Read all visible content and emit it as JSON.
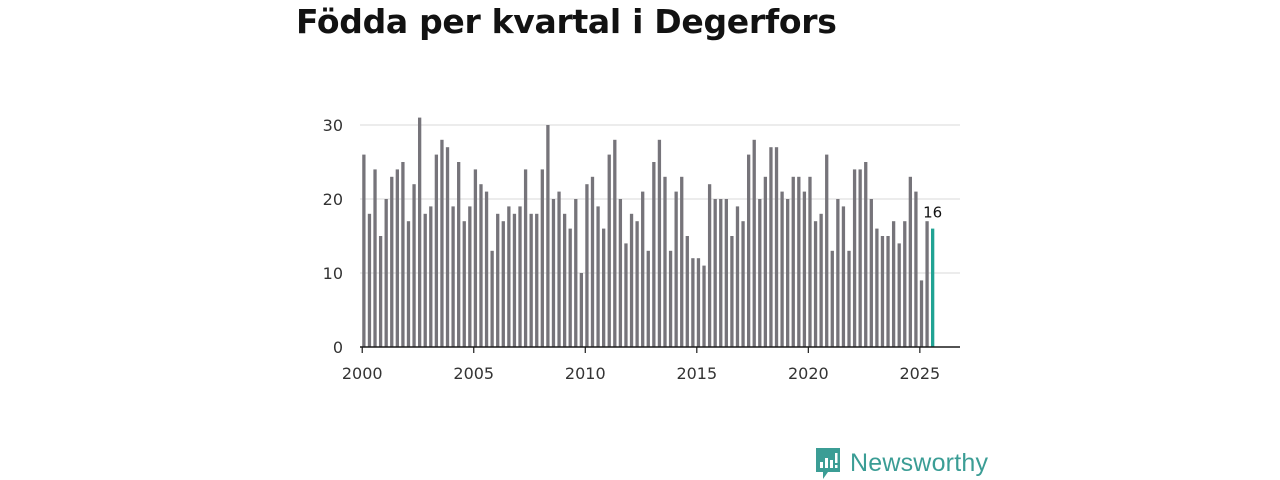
{
  "chart_data": {
    "type": "bar",
    "title": "Födda per kvartal i Degerfors",
    "xlabel": "",
    "ylabel": "",
    "ylim": [
      0,
      30
    ],
    "yticks": [
      0,
      10,
      20,
      30
    ],
    "xticks": [
      "2000",
      "2005",
      "2010",
      "2015",
      "2020",
      "2025"
    ],
    "xlim": [
      1999.9,
      2026.8
    ],
    "grid": true,
    "bar_color": "#76747a",
    "highlight_color": "#22a394",
    "highlight_last": true,
    "last_value_label": "16",
    "series": [
      {
        "name": "Födda",
        "x": [
          2000.0,
          2000.25,
          2000.5,
          2000.75,
          2001.0,
          2001.25,
          2001.5,
          2001.75,
          2002.0,
          2002.25,
          2002.5,
          2002.75,
          2003.0,
          2003.25,
          2003.5,
          2003.75,
          2004.0,
          2004.25,
          2004.5,
          2004.75,
          2005.0,
          2005.25,
          2005.5,
          2005.75,
          2006.0,
          2006.25,
          2006.5,
          2006.75,
          2007.0,
          2007.25,
          2007.5,
          2007.75,
          2008.0,
          2008.25,
          2008.5,
          2008.75,
          2009.0,
          2009.25,
          2009.5,
          2009.75,
          2010.0,
          2010.25,
          2010.5,
          2010.75,
          2011.0,
          2011.25,
          2011.5,
          2011.75,
          2012.0,
          2012.25,
          2012.5,
          2012.75,
          2013.0,
          2013.25,
          2013.5,
          2013.75,
          2014.0,
          2014.25,
          2014.5,
          2014.75,
          2015.0,
          2015.25,
          2015.5,
          2015.75,
          2016.0,
          2016.25,
          2016.5,
          2016.75,
          2017.0,
          2017.25,
          2017.5,
          2017.75,
          2018.0,
          2018.25,
          2018.5,
          2018.75,
          2019.0,
          2019.25,
          2019.5,
          2019.75,
          2020.0,
          2020.25,
          2020.5,
          2020.75,
          2021.0,
          2021.25,
          2021.5,
          2021.75,
          2022.0,
          2022.25,
          2022.5,
          2022.75,
          2023.0,
          2023.25,
          2023.5,
          2023.75,
          2024.0,
          2024.25,
          2024.5,
          2024.75,
          2025.0,
          2025.25,
          2025.5
        ],
        "values": [
          26,
          18,
          24,
          15,
          20,
          23,
          24,
          25,
          17,
          22,
          31,
          18,
          19,
          26,
          28,
          27,
          19,
          25,
          17,
          19,
          24,
          22,
          21,
          13,
          18,
          17,
          19,
          18,
          19,
          24,
          18,
          18,
          24,
          30,
          20,
          21,
          18,
          16,
          20,
          10,
          22,
          23,
          19,
          16,
          26,
          28,
          20,
          14,
          18,
          17,
          21,
          13,
          25,
          28,
          23,
          13,
          21,
          23,
          15,
          12,
          12,
          11,
          22,
          20,
          20,
          20,
          15,
          19,
          17,
          26,
          28,
          20,
          23,
          27,
          27,
          21,
          20,
          23,
          23,
          21,
          23,
          17,
          18,
          26,
          13,
          20,
          19,
          13,
          24,
          24,
          25,
          20,
          16,
          15,
          15,
          17,
          14,
          17,
          23,
          21,
          9,
          17,
          16
        ]
      }
    ]
  },
  "brand": {
    "name": "Newsworthy",
    "icon": "bar-chart-speech-bubble-icon",
    "color": "#3b9d95"
  }
}
